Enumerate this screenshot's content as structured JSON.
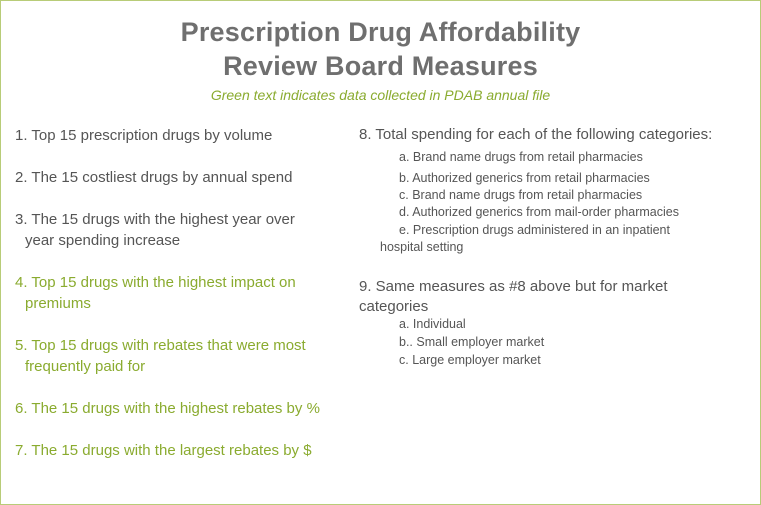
{
  "title_line1": "Prescription Drug Affordability",
  "title_line2": "Review Board Measures",
  "subtitle": "Green text indicates data collected in PDAB annual file",
  "left_items": [
    {
      "line1": "1.  Top 15 prescription drugs by volume",
      "line2": ""
    },
    {
      "line1": "2.  The 15 costliest drugs by annual spend",
      "line2": ""
    },
    {
      "line1": "3.  The 15 drugs with the highest year over",
      "line2": "year spending increase"
    },
    {
      "line1": "4.  Top 15 drugs with the highest impact on",
      "line2": "premiums"
    },
    {
      "line1": "5.  Top 15 drugs with rebates that were most",
      "line2": "frequently paid for"
    },
    {
      "line1": "6.  The 15 drugs with the highest rebates by %",
      "line2": ""
    },
    {
      "line1": "7.  The 15 drugs with the largest rebates by $",
      "line2": ""
    }
  ],
  "item8": {
    "heading": "8. Total spending for each of the following categories:",
    "a": "a. Brand name drugs from retail pharmacies",
    "b": "b. Authorized generics from retail pharmacies",
    "c": "c. Brand name drugs from retail pharmacies",
    "d": "d. Authorized generics from mail-order pharmacies",
    "e_line1": "e. Prescription drugs administered in an inpatient",
    "e_line2": "hospital setting"
  },
  "item9": {
    "heading_line1": "9. Same measures as #8 above but for market",
    "heading_line2": "categories",
    "a": "a. Individual",
    "b": "b.. Small employer market",
    "c": "c. Large employer market"
  },
  "colors": {
    "title": "#6f6f6f",
    "body_text": "#555555",
    "green_text": "#8aab2f",
    "border": "#b8cc78"
  }
}
